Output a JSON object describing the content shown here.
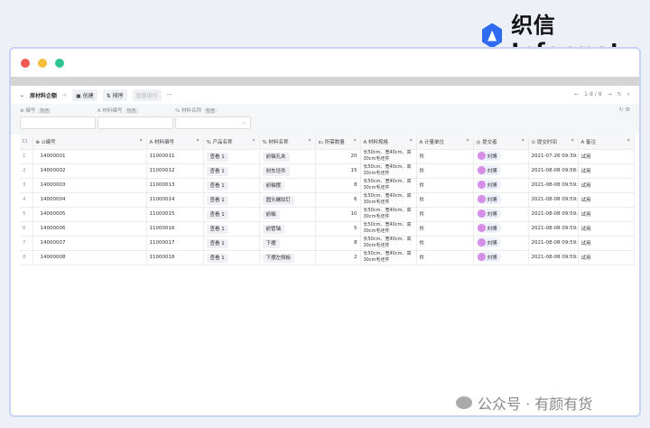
{
  "brand": {
    "name": "织信 Informat",
    "brand_color": "#2f6bf0"
  },
  "window_dots": [
    "#ee5b52",
    "#f4bd3c",
    "#2fc48f"
  ],
  "toolbar": {
    "title": "原材料企额",
    "create": "创建",
    "sort": "排序",
    "batch": "批量操作",
    "more": "···",
    "pager": "1-8 / 8"
  },
  "filters": [
    {
      "label": "编号",
      "tag": "包含"
    },
    {
      "label": "材料编号",
      "tag": "包含"
    },
    {
      "label": "材料名称",
      "tag": "包含"
    }
  ],
  "columns": [
    "编号",
    "材料编号",
    "产品名称",
    "材料名称",
    "所需数量",
    "材料规格",
    "计量单位",
    "提交者",
    "提交时间",
    "备注"
  ],
  "rows": [
    {
      "i": "1",
      "id": "14000001",
      "mat": "11000011",
      "prod": "查看 1",
      "name": "前轴孔夹",
      "qty": "20",
      "spec": "长50cm、宽40cm、高30cm毛坯件",
      "unit": "件",
      "user": "刘博",
      "time": "2021-07-26 09:39:21",
      "note": "试用"
    },
    {
      "i": "2",
      "id": "14000002",
      "mat": "11000012",
      "prod": "查看 1",
      "name": "刹车坯件",
      "qty": "15",
      "spec": "长50cm、宽40cm、高30cm毛坯件",
      "unit": "件",
      "user": "刘博",
      "time": "2021-08-08 09:58:58",
      "note": "试用"
    },
    {
      "i": "3",
      "id": "14000003",
      "mat": "11000013",
      "prod": "查看 1",
      "name": "前轴摆",
      "qty": "8",
      "spec": "长50cm、宽40cm、高30cm毛坯件",
      "unit": "件",
      "user": "刘博",
      "time": "2021-08-08 09:59:01",
      "note": "试用"
    },
    {
      "i": "4",
      "id": "14000004",
      "mat": "11000014",
      "prod": "查看 1",
      "name": "圆头螺纹钉",
      "qty": "6",
      "spec": "长50cm、宽40cm、高30cm毛坯件",
      "unit": "件",
      "user": "刘博",
      "time": "2021-08-08 09:59:05",
      "note": "试用"
    },
    {
      "i": "5",
      "id": "14000005",
      "mat": "11000015",
      "prod": "查看 1",
      "name": "前轴",
      "qty": "10",
      "spec": "长50cm、宽40cm、高30cm毛坯件",
      "unit": "件",
      "user": "刘博",
      "time": "2021-08-08 09:59:08",
      "note": "试用"
    },
    {
      "i": "6",
      "id": "14000006",
      "mat": "11000016",
      "prod": "查看 1",
      "name": "前管轴",
      "qty": "5",
      "spec": "长50cm、宽40cm、高30cm毛坯件",
      "unit": "件",
      "user": "刘博",
      "time": "2021-08-08 09:59:11",
      "note": "试用"
    },
    {
      "i": "7",
      "id": "14000007",
      "mat": "11000017",
      "prod": "查看 1",
      "name": "下摆",
      "qty": "8",
      "spec": "长50cm、宽40cm、高30cm毛坯件",
      "unit": "件",
      "user": "刘博",
      "time": "2021-08-08 09:59:20",
      "note": "试用"
    },
    {
      "i": "8",
      "id": "14000008",
      "mat": "11000018",
      "prod": "查看 1",
      "name": "下摆左侧板",
      "qty": "2",
      "spec": "长50cm、宽40cm、高30cm毛坯件",
      "unit": "件",
      "user": "刘博",
      "time": "2021-08-08 09:59:23",
      "note": "试用"
    }
  ],
  "watermark": "公众号 · 有颜有货"
}
